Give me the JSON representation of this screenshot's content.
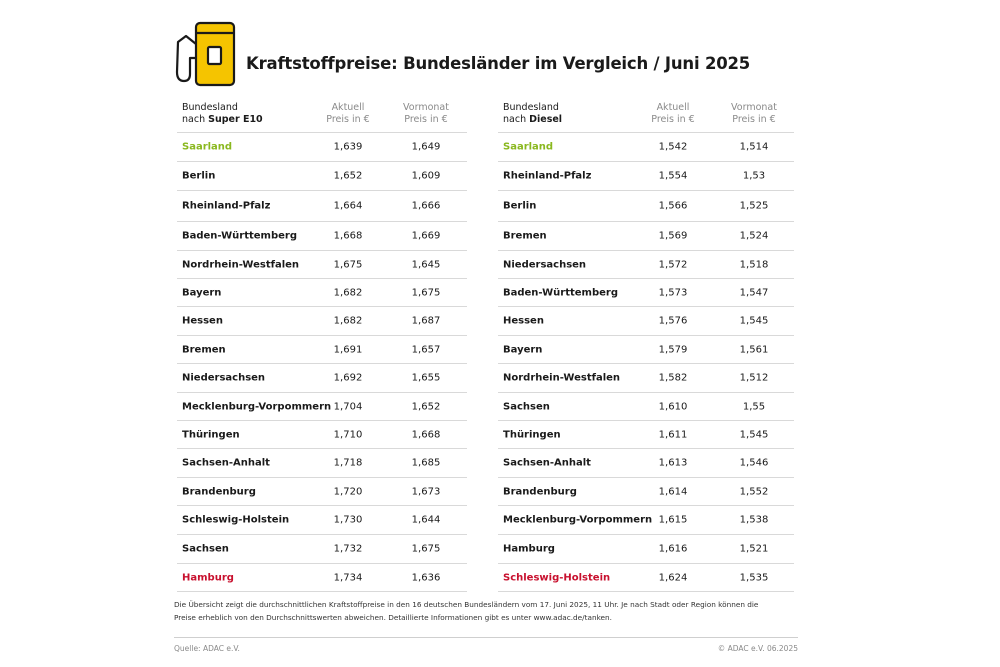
{
  "colors": {
    "accent": "#f5c400",
    "best": "#8ab81f",
    "worst": "#c8102e",
    "text": "#1a1a1a",
    "muted": "#8a8a8a",
    "rule": "#d9d9d9"
  },
  "icons": {
    "logo": "fuel-pump-icon"
  },
  "chart_data": {
    "type": "table",
    "title": "Kraftstoffpreise: Bundesländer im Vergleich / Juni 2025",
    "tables": [
      {
        "header": {
          "name_line1": "Bundesland",
          "name_prefix": "nach ",
          "fuel": "Super E10",
          "current_line1": "Aktuell",
          "current_line2": "Preis in €",
          "previous_line1": "Vormonat",
          "previous_line2": "Preis in €"
        },
        "rows": [
          {
            "name": "Saarland",
            "current": "1,639",
            "previous": "1,649",
            "highlight": "best"
          },
          {
            "name": "Berlin",
            "current": "1,652",
            "previous": "1,609"
          },
          {
            "name": "Rheinland-Pfalz",
            "current": "1,664",
            "previous": "1,666"
          },
          {
            "name": "Baden-Württemberg",
            "current": "1,668",
            "previous": "1,669"
          },
          {
            "name": "Nordrhein-Westfalen",
            "current": "1,675",
            "previous": "1,645"
          },
          {
            "name": "Bayern",
            "current": "1,682",
            "previous": "1,675"
          },
          {
            "name": "Hessen",
            "current": "1,682",
            "previous": "1,687"
          },
          {
            "name": "Bremen",
            "current": "1,691",
            "previous": "1,657"
          },
          {
            "name": "Niedersachsen",
            "current": "1,692",
            "previous": "1,655"
          },
          {
            "name": "Mecklenburg-Vorpommern",
            "current": "1,704",
            "previous": "1,652"
          },
          {
            "name": "Thüringen",
            "current": "1,710",
            "previous": "1,668"
          },
          {
            "name": "Sachsen-Anhalt",
            "current": "1,718",
            "previous": "1,685"
          },
          {
            "name": "Brandenburg",
            "current": "1,720",
            "previous": "1,673"
          },
          {
            "name": "Schleswig-Holstein",
            "current": "1,730",
            "previous": "1,644"
          },
          {
            "name": "Sachsen",
            "current": "1,732",
            "previous": "1,675"
          },
          {
            "name": "Hamburg",
            "current": "1,734",
            "previous": "1,636",
            "highlight": "worst"
          }
        ]
      },
      {
        "header": {
          "name_line1": "Bundesland",
          "name_prefix": "nach ",
          "fuel": "Diesel",
          "current_line1": "Aktuell",
          "current_line2": "Preis in €",
          "previous_line1": "Vormonat",
          "previous_line2": "Preis in €"
        },
        "rows": [
          {
            "name": "Saarland",
            "current": "1,542",
            "previous": "1,514",
            "highlight": "best"
          },
          {
            "name": "Rheinland-Pfalz",
            "current": "1,554",
            "previous": "1,53"
          },
          {
            "name": "Berlin",
            "current": "1,566",
            "previous": "1,525"
          },
          {
            "name": "Bremen",
            "current": "1,569",
            "previous": "1,524"
          },
          {
            "name": "Niedersachsen",
            "current": "1,572",
            "previous": "1,518"
          },
          {
            "name": "Baden-Württemberg",
            "current": "1,573",
            "previous": "1,547"
          },
          {
            "name": "Hessen",
            "current": "1,576",
            "previous": "1,545"
          },
          {
            "name": "Bayern",
            "current": "1,579",
            "previous": "1,561"
          },
          {
            "name": "Nordrhein-Westfalen",
            "current": "1,582",
            "previous": "1,512"
          },
          {
            "name": "Sachsen",
            "current": "1,610",
            "previous": "1,55"
          },
          {
            "name": "Thüringen",
            "current": "1,611",
            "previous": "1,545"
          },
          {
            "name": "Sachsen-Anhalt",
            "current": "1,613",
            "previous": "1,546"
          },
          {
            "name": "Brandenburg",
            "current": "1,614",
            "previous": "1,552"
          },
          {
            "name": "Mecklenburg-Vorpommern",
            "current": "1,615",
            "previous": "1,538"
          },
          {
            "name": "Hamburg",
            "current": "1,616",
            "previous": "1,521"
          },
          {
            "name": "Schleswig-Holstein",
            "current": "1,624",
            "previous": "1,535",
            "highlight": "worst"
          }
        ]
      }
    ]
  },
  "note": {
    "line1": "Die Übersicht zeigt die durchschnittlichen Kraftstoffpreise in den 16 deutschen Bundesländern vom 17. Juni 2025, 11 Uhr. Je nach Stadt oder Region können die",
    "line2": "Preise erheblich von den Durchschnittswerten abweichen. Detaillierte Informationen gibt es unter www.adac.de/tanken."
  },
  "footer": {
    "source": "Quelle: ADAC e.V.",
    "copyright": "© ADAC e.V. 06.2025"
  }
}
